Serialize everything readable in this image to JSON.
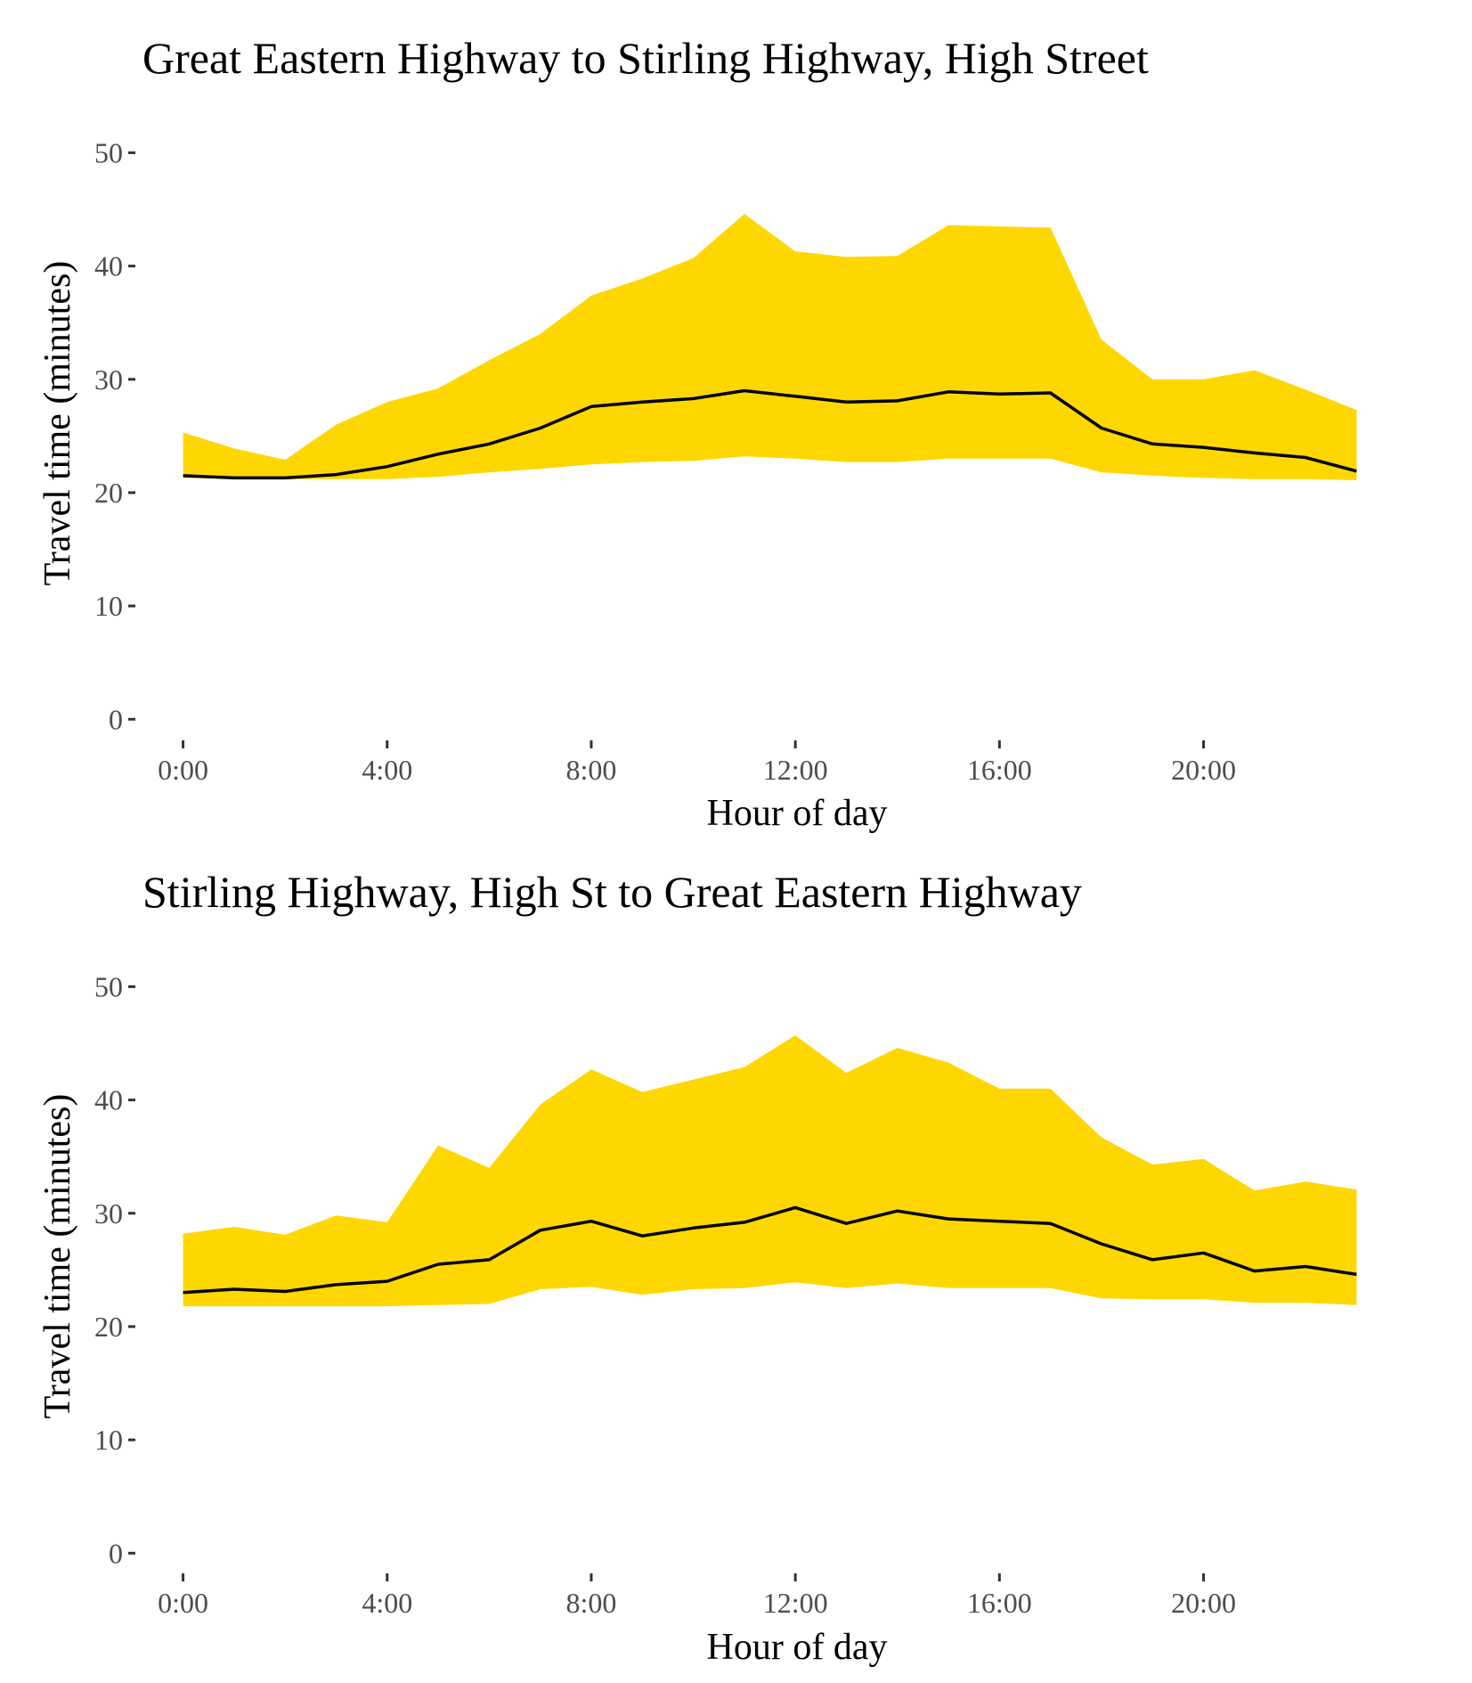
{
  "colors": {
    "band": "#FFD700",
    "line": "#000000",
    "tick_text": "#4d4d4d",
    "background": "#ffffff"
  },
  "chart_data": [
    {
      "type": "area",
      "title": "Great Eastern Highway to Stirling Highway, High Street",
      "xlabel": "Hour of day",
      "ylabel": "Travel time (minutes)",
      "x": [
        0,
        1,
        2,
        3,
        4,
        5,
        6,
        7,
        8,
        9,
        10,
        11,
        12,
        13,
        14,
        15,
        16,
        17,
        18,
        19,
        20,
        21,
        22,
        23
      ],
      "xlim": [
        -0.9,
        23.9
      ],
      "x_ticks": [
        0,
        4,
        8,
        12,
        16,
        20
      ],
      "x_tick_labels": [
        "0:00",
        "4:00",
        "8:00",
        "12:00",
        "16:00",
        "20:00"
      ],
      "ylim": [
        -1,
        52
      ],
      "y_ticks": [
        0,
        10,
        20,
        30,
        40,
        50
      ],
      "y_tick_labels": [
        "0",
        "10",
        "20",
        "30",
        "40",
        "50"
      ],
      "grid": false,
      "legend": "none",
      "series": [
        {
          "role": "band_lower",
          "values": [
            21.3,
            21.2,
            21.2,
            21.2,
            21.2,
            21.4,
            21.8,
            22.1,
            22.5,
            22.7,
            22.8,
            23.2,
            23.0,
            22.7,
            22.7,
            23.0,
            23.0,
            23.0,
            21.8,
            21.5,
            21.3,
            21.2,
            21.2,
            21.1
          ]
        },
        {
          "role": "band_upper",
          "values": [
            25.3,
            23.9,
            22.9,
            26.0,
            28.0,
            29.2,
            31.7,
            34.0,
            37.4,
            38.9,
            40.7,
            44.6,
            41.3,
            40.8,
            40.9,
            43.6,
            43.5,
            43.4,
            33.5,
            30.0,
            30.0,
            30.8,
            29.1,
            27.3
          ]
        },
        {
          "role": "mean",
          "values": [
            21.5,
            21.3,
            21.3,
            21.6,
            22.3,
            23.4,
            24.3,
            25.7,
            27.6,
            28.0,
            28.3,
            29.0,
            28.5,
            28.0,
            28.1,
            28.9,
            28.7,
            28.8,
            25.7,
            24.3,
            24.0,
            23.5,
            23.1,
            21.9
          ]
        }
      ]
    },
    {
      "type": "area",
      "title": "Stirling Highway, High St to Great Eastern Highway",
      "xlabel": "Hour of day",
      "ylabel": "Travel time (minutes)",
      "x": [
        0,
        1,
        2,
        3,
        4,
        5,
        6,
        7,
        8,
        9,
        10,
        11,
        12,
        13,
        14,
        15,
        16,
        17,
        18,
        19,
        20,
        21,
        22,
        23
      ],
      "xlim": [
        -0.9,
        23.9
      ],
      "x_ticks": [
        0,
        4,
        8,
        12,
        16,
        20
      ],
      "x_tick_labels": [
        "0:00",
        "4:00",
        "8:00",
        "12:00",
        "16:00",
        "20:00"
      ],
      "ylim": [
        -1,
        52
      ],
      "y_ticks": [
        0,
        10,
        20,
        30,
        40,
        50
      ],
      "y_tick_labels": [
        "0",
        "10",
        "20",
        "30",
        "40",
        "50"
      ],
      "grid": false,
      "legend": "none",
      "series": [
        {
          "role": "band_lower",
          "values": [
            21.8,
            21.8,
            21.8,
            21.8,
            21.8,
            21.9,
            22.0,
            23.3,
            23.5,
            22.8,
            23.3,
            23.4,
            23.9,
            23.4,
            23.8,
            23.4,
            23.4,
            23.4,
            22.5,
            22.4,
            22.4,
            22.1,
            22.1,
            21.9
          ]
        },
        {
          "role": "band_upper",
          "values": [
            28.2,
            28.8,
            28.1,
            29.8,
            29.2,
            36.0,
            34.0,
            39.6,
            42.7,
            40.7,
            41.8,
            42.9,
            45.7,
            42.4,
            44.6,
            43.3,
            41.0,
            41.0,
            36.7,
            34.3,
            34.8,
            32.0,
            32.8,
            32.1
          ]
        },
        {
          "role": "mean",
          "values": [
            23.0,
            23.3,
            23.1,
            23.7,
            24.0,
            25.5,
            25.9,
            28.5,
            29.3,
            28.0,
            28.7,
            29.2,
            30.5,
            29.1,
            30.2,
            29.5,
            29.3,
            29.1,
            27.3,
            25.9,
            26.5,
            24.9,
            25.3,
            24.6
          ]
        }
      ]
    }
  ]
}
